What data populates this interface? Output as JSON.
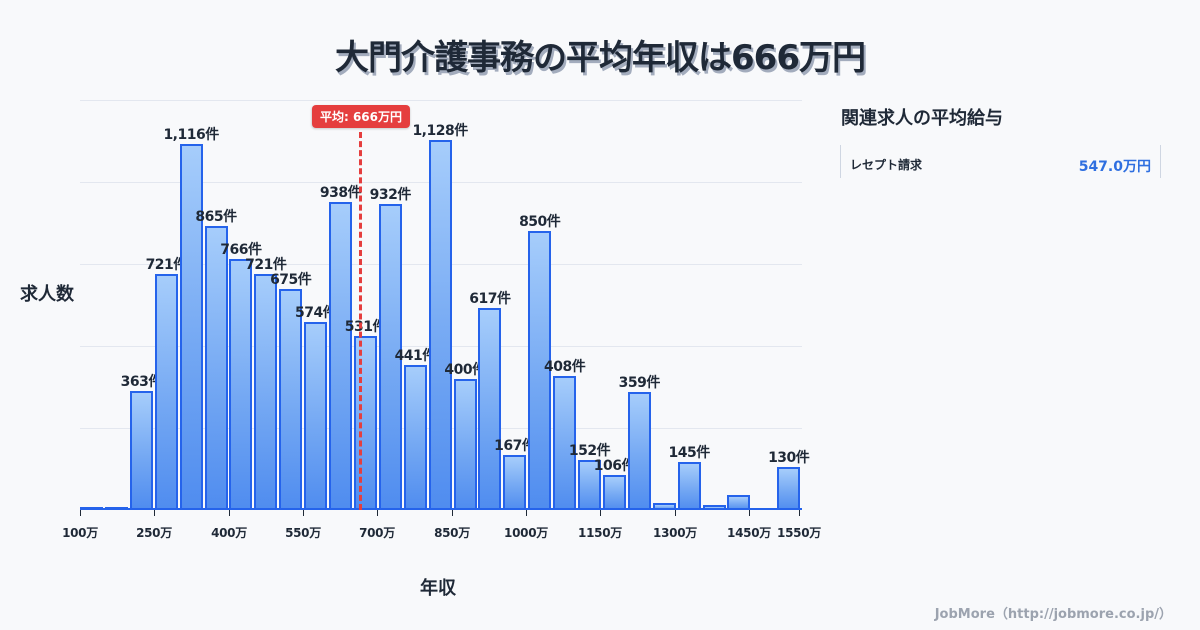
{
  "header": {
    "title": "大門介護事務の平均年収は666万円"
  },
  "chart": {
    "ylabel": "求人数",
    "xlabel": "年収",
    "mean_badge": "平均: 666万円",
    "x_ticks": [
      "100万",
      "250万",
      "400万",
      "550万",
      "700万",
      "850万",
      "1000万",
      "1150万",
      "1300万",
      "1450万",
      "1550万"
    ],
    "bar_labels": [
      "",
      "",
      "363件",
      "721件",
      "1,116件",
      "865件",
      "766件",
      "721件",
      "675件",
      "574件",
      "938件",
      "531件",
      "932件",
      "441件",
      "1,128件",
      "400件",
      "617件",
      "167件",
      "850件",
      "408件",
      "152件",
      "106件",
      "359件",
      "",
      "145件",
      "",
      "",
      "",
      "130件"
    ]
  },
  "sidebar": {
    "title": "関連求人の平均給与",
    "items": [
      {
        "label": "レセプト請求",
        "value": "547.0万円"
      }
    ]
  },
  "footer": {
    "credit": "JobMore（http://jobmore.co.jp/）"
  },
  "colors": {
    "bar_fill": "#74a8f3",
    "bar_border": "#2563eb",
    "mean_line": "#e53e3e",
    "accent_value": "#2f6fe0"
  },
  "chart_data": {
    "type": "bar",
    "title": "大門介護事務の平均年収は666万円",
    "xlabel": "年収",
    "ylabel": "求人数",
    "categories": [
      "100万",
      "150万",
      "200万",
      "250万",
      "300万",
      "350万",
      "400万",
      "450万",
      "500万",
      "550万",
      "600万",
      "650万",
      "700万",
      "750万",
      "800万",
      "850万",
      "900万",
      "950万",
      "1000万",
      "1050万",
      "1100万",
      "1150万",
      "1200万",
      "1250万",
      "1300万",
      "1350万",
      "1400万",
      "1450万",
      "1500万"
    ],
    "values": [
      10,
      10,
      363,
      721,
      1116,
      865,
      766,
      721,
      675,
      574,
      938,
      531,
      932,
      441,
      1128,
      400,
      617,
      167,
      850,
      408,
      152,
      106,
      359,
      20,
      145,
      15,
      45,
      2,
      130
    ],
    "annotations": [
      {
        "type": "vline",
        "x": 666,
        "label": "平均: 666万円"
      }
    ],
    "x_tick_labels": [
      "100万",
      "250万",
      "400万",
      "550万",
      "700万",
      "850万",
      "1000万",
      "1150万",
      "1300万",
      "1450万",
      "1550万"
    ],
    "ylim": [
      0,
      1250
    ],
    "grid": true
  }
}
